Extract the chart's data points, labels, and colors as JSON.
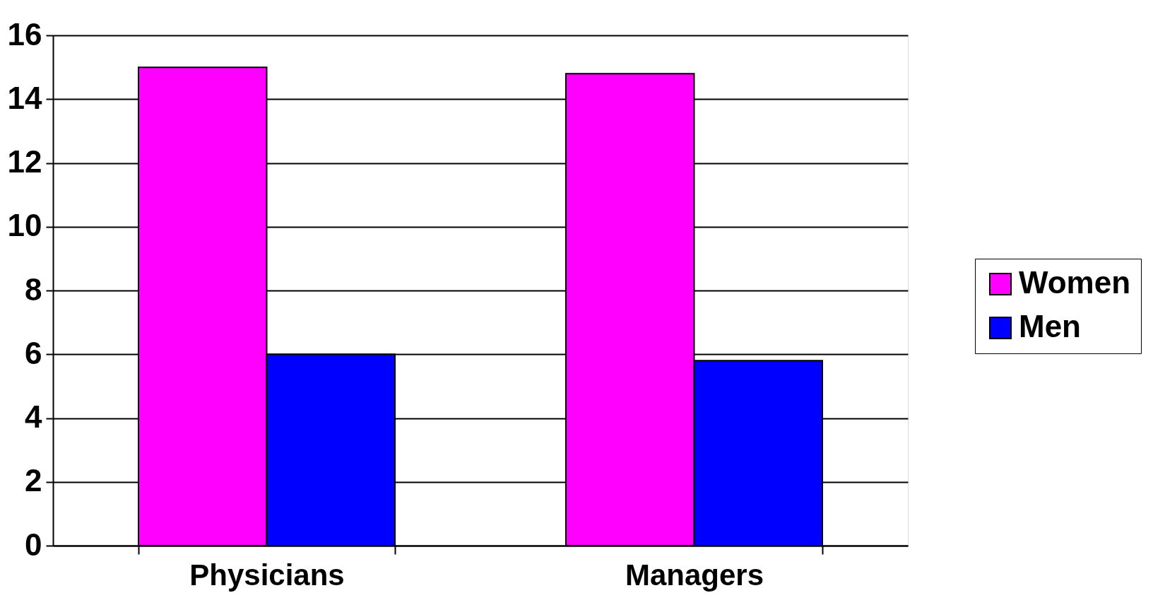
{
  "chart_data": {
    "type": "bar",
    "categories": [
      "Physicians",
      "Managers"
    ],
    "series": [
      {
        "name": "Women",
        "color": "#ff00ff",
        "values": [
          15,
          14.8
        ]
      },
      {
        "name": "Men",
        "color": "#0000ff",
        "values": [
          6,
          5.8
        ]
      }
    ],
    "ylim": [
      0,
      16
    ],
    "yticks": [
      0,
      2,
      4,
      6,
      8,
      10,
      12,
      14,
      16
    ],
    "grid": "y",
    "legend": "right"
  }
}
